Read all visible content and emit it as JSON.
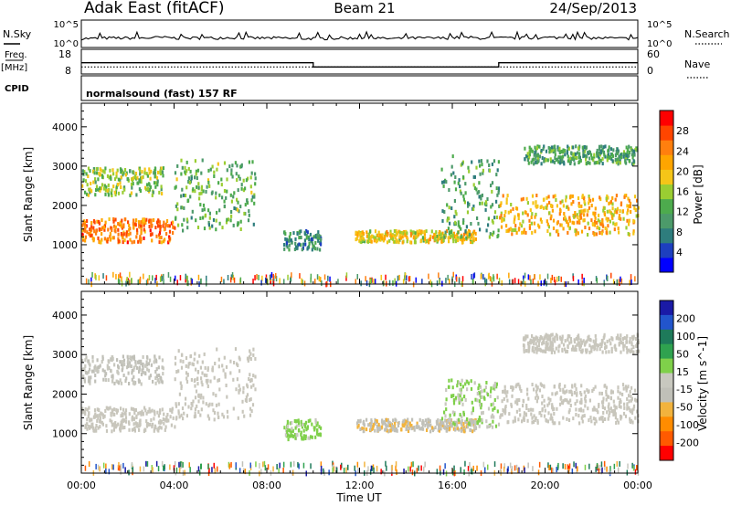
{
  "header": {
    "station": "Adak East (fitACF)",
    "beam": "Beam 21",
    "date": "24/Sep/2013"
  },
  "panels": {
    "nsky": {
      "left_label": "N.Sky",
      "right_label": "N.Search",
      "left_ticks": [
        "10^5",
        "10^0"
      ],
      "right_ticks": [
        "10^5",
        "10^0"
      ]
    },
    "freq": {
      "left_label": "Freq.",
      "unit_label": "[MHz]",
      "right_label": "Nave",
      "left_ticks": [
        "18",
        "8"
      ],
      "right_ticks": [
        "60",
        "0"
      ]
    },
    "cpid": {
      "label": "CPID",
      "program": "normalsound (fast) 157 RF"
    }
  },
  "colors": {
    "power": [
      "#0000ff",
      "#1d3fbf",
      "#2e7d7d",
      "#4c9a6a",
      "#4dab4d",
      "#9acd32",
      "#f5c518",
      "#ffa500",
      "#ff7f0e",
      "#ff4500",
      "#ff0000"
    ],
    "velocity": [
      "#1a1aa6",
      "#2255cc",
      "#1e7a5a",
      "#2fa24f",
      "#7fd04a",
      "#c8c8bf",
      "#c0c0b8",
      "#f2b33d",
      "#ff8c00",
      "#ff5a00",
      "#ff0000"
    ],
    "ground_scatter": "#c8c6bc"
  },
  "chart_data": [
    {
      "type": "line",
      "name": "N.Sky / N.Search",
      "ylim_exponent": [
        0,
        5
      ],
      "series": [
        {
          "values": [
            1.5,
            1.6,
            1.6,
            1.7,
            1.6,
            1.6,
            1.7,
            1.6,
            1.6,
            1.5,
            1.5,
            1.6,
            1.6,
            1.5,
            1.6,
            1.6,
            1.7,
            1.6,
            1.6,
            1.6,
            1.7,
            1.6,
            1.6,
            1.5
          ]
        }
      ]
    },
    {
      "type": "line",
      "name": "Freq / Nave",
      "x": [
        "00:00",
        "10:00",
        "10:00",
        "18:00",
        "18:00",
        "24:00"
      ],
      "freq_mhz": [
        12.5,
        12.5,
        10.5,
        10.5,
        12.5,
        12.5
      ],
      "nave": [
        15,
        15,
        15,
        15,
        15,
        15
      ],
      "freq_ylim": [
        8,
        18
      ],
      "nave_ylim": [
        0,
        60
      ]
    },
    {
      "type": "heatmap",
      "name": "Power",
      "xlabel": "",
      "ylabel": "Slant Range [km]",
      "xlim": [
        "00:00",
        "24:00"
      ],
      "ylim": [
        0,
        4600
      ],
      "y_ticks": [
        1000,
        2000,
        3000,
        4000
      ],
      "colorbar": {
        "label": "Power [dB]",
        "ticks": [
          4,
          8,
          12,
          16,
          20,
          24,
          28
        ],
        "range": [
          0,
          30
        ]
      },
      "scatter_regions": [
        {
          "t_start": 0.0,
          "t_end": 4.0,
          "range_km": [
            1100,
            1700
          ],
          "value": 24
        },
        {
          "t_start": 0.0,
          "t_end": 3.5,
          "range_km": [
            2300,
            3000
          ],
          "value": 14
        },
        {
          "t_start": 4.0,
          "t_end": 7.5,
          "range_km": [
            1400,
            3200
          ],
          "value": 12
        },
        {
          "t_start": 8.7,
          "t_end": 10.3,
          "range_km": [
            900,
            1400
          ],
          "value": 8
        },
        {
          "t_start": 11.8,
          "t_end": 17.0,
          "range_km": [
            1100,
            1400
          ],
          "value": 18
        },
        {
          "t_start": 15.5,
          "t_end": 18.0,
          "range_km": [
            1200,
            3300
          ],
          "value": 10
        },
        {
          "t_start": 18.0,
          "t_end": 24.0,
          "range_km": [
            1300,
            2300
          ],
          "value": 20
        },
        {
          "t_start": 19.0,
          "t_end": 24.0,
          "range_km": [
            3100,
            3550
          ],
          "value": 10
        }
      ]
    },
    {
      "type": "heatmap",
      "name": "Velocity",
      "xlabel": "Time UT",
      "ylabel": "Slant Range [km]",
      "xlim": [
        "00:00",
        "24:00"
      ],
      "x_ticks": [
        "00:00",
        "04:00",
        "08:00",
        "12:00",
        "16:00",
        "20:00",
        "00:00"
      ],
      "ylim": [
        0,
        4600
      ],
      "y_ticks": [
        1000,
        2000,
        3000,
        4000
      ],
      "colorbar": {
        "label": "Velocity [m s^-1]",
        "ticks": [
          200,
          100,
          50,
          15,
          -15,
          -50,
          -100,
          -200
        ],
        "range": [
          -250,
          250
        ]
      },
      "scatter_regions": [
        {
          "t_start": 0.0,
          "t_end": 4.0,
          "range_km": [
            1100,
            1700
          ],
          "value": 0,
          "ground_scatter": true
        },
        {
          "t_start": 0.0,
          "t_end": 3.5,
          "range_km": [
            2300,
            3000
          ],
          "value": -30
        },
        {
          "t_start": 4.0,
          "t_end": 7.5,
          "range_km": [
            1400,
            3200
          ],
          "value": 0,
          "ground_scatter": true
        },
        {
          "t_start": 8.7,
          "t_end": 10.3,
          "range_km": [
            900,
            1400
          ],
          "value": 40
        },
        {
          "t_start": 11.8,
          "t_end": 17.0,
          "range_km": [
            1100,
            1400
          ],
          "value": -60
        },
        {
          "t_start": 15.5,
          "t_end": 18.0,
          "range_km": [
            1200,
            2400
          ],
          "value": 30
        },
        {
          "t_start": 18.0,
          "t_end": 24.0,
          "range_km": [
            1300,
            2300
          ],
          "value": 0,
          "ground_scatter": true
        },
        {
          "t_start": 19.0,
          "t_end": 24.0,
          "range_km": [
            3100,
            3550
          ],
          "value": 0,
          "ground_scatter": true
        }
      ]
    }
  ]
}
